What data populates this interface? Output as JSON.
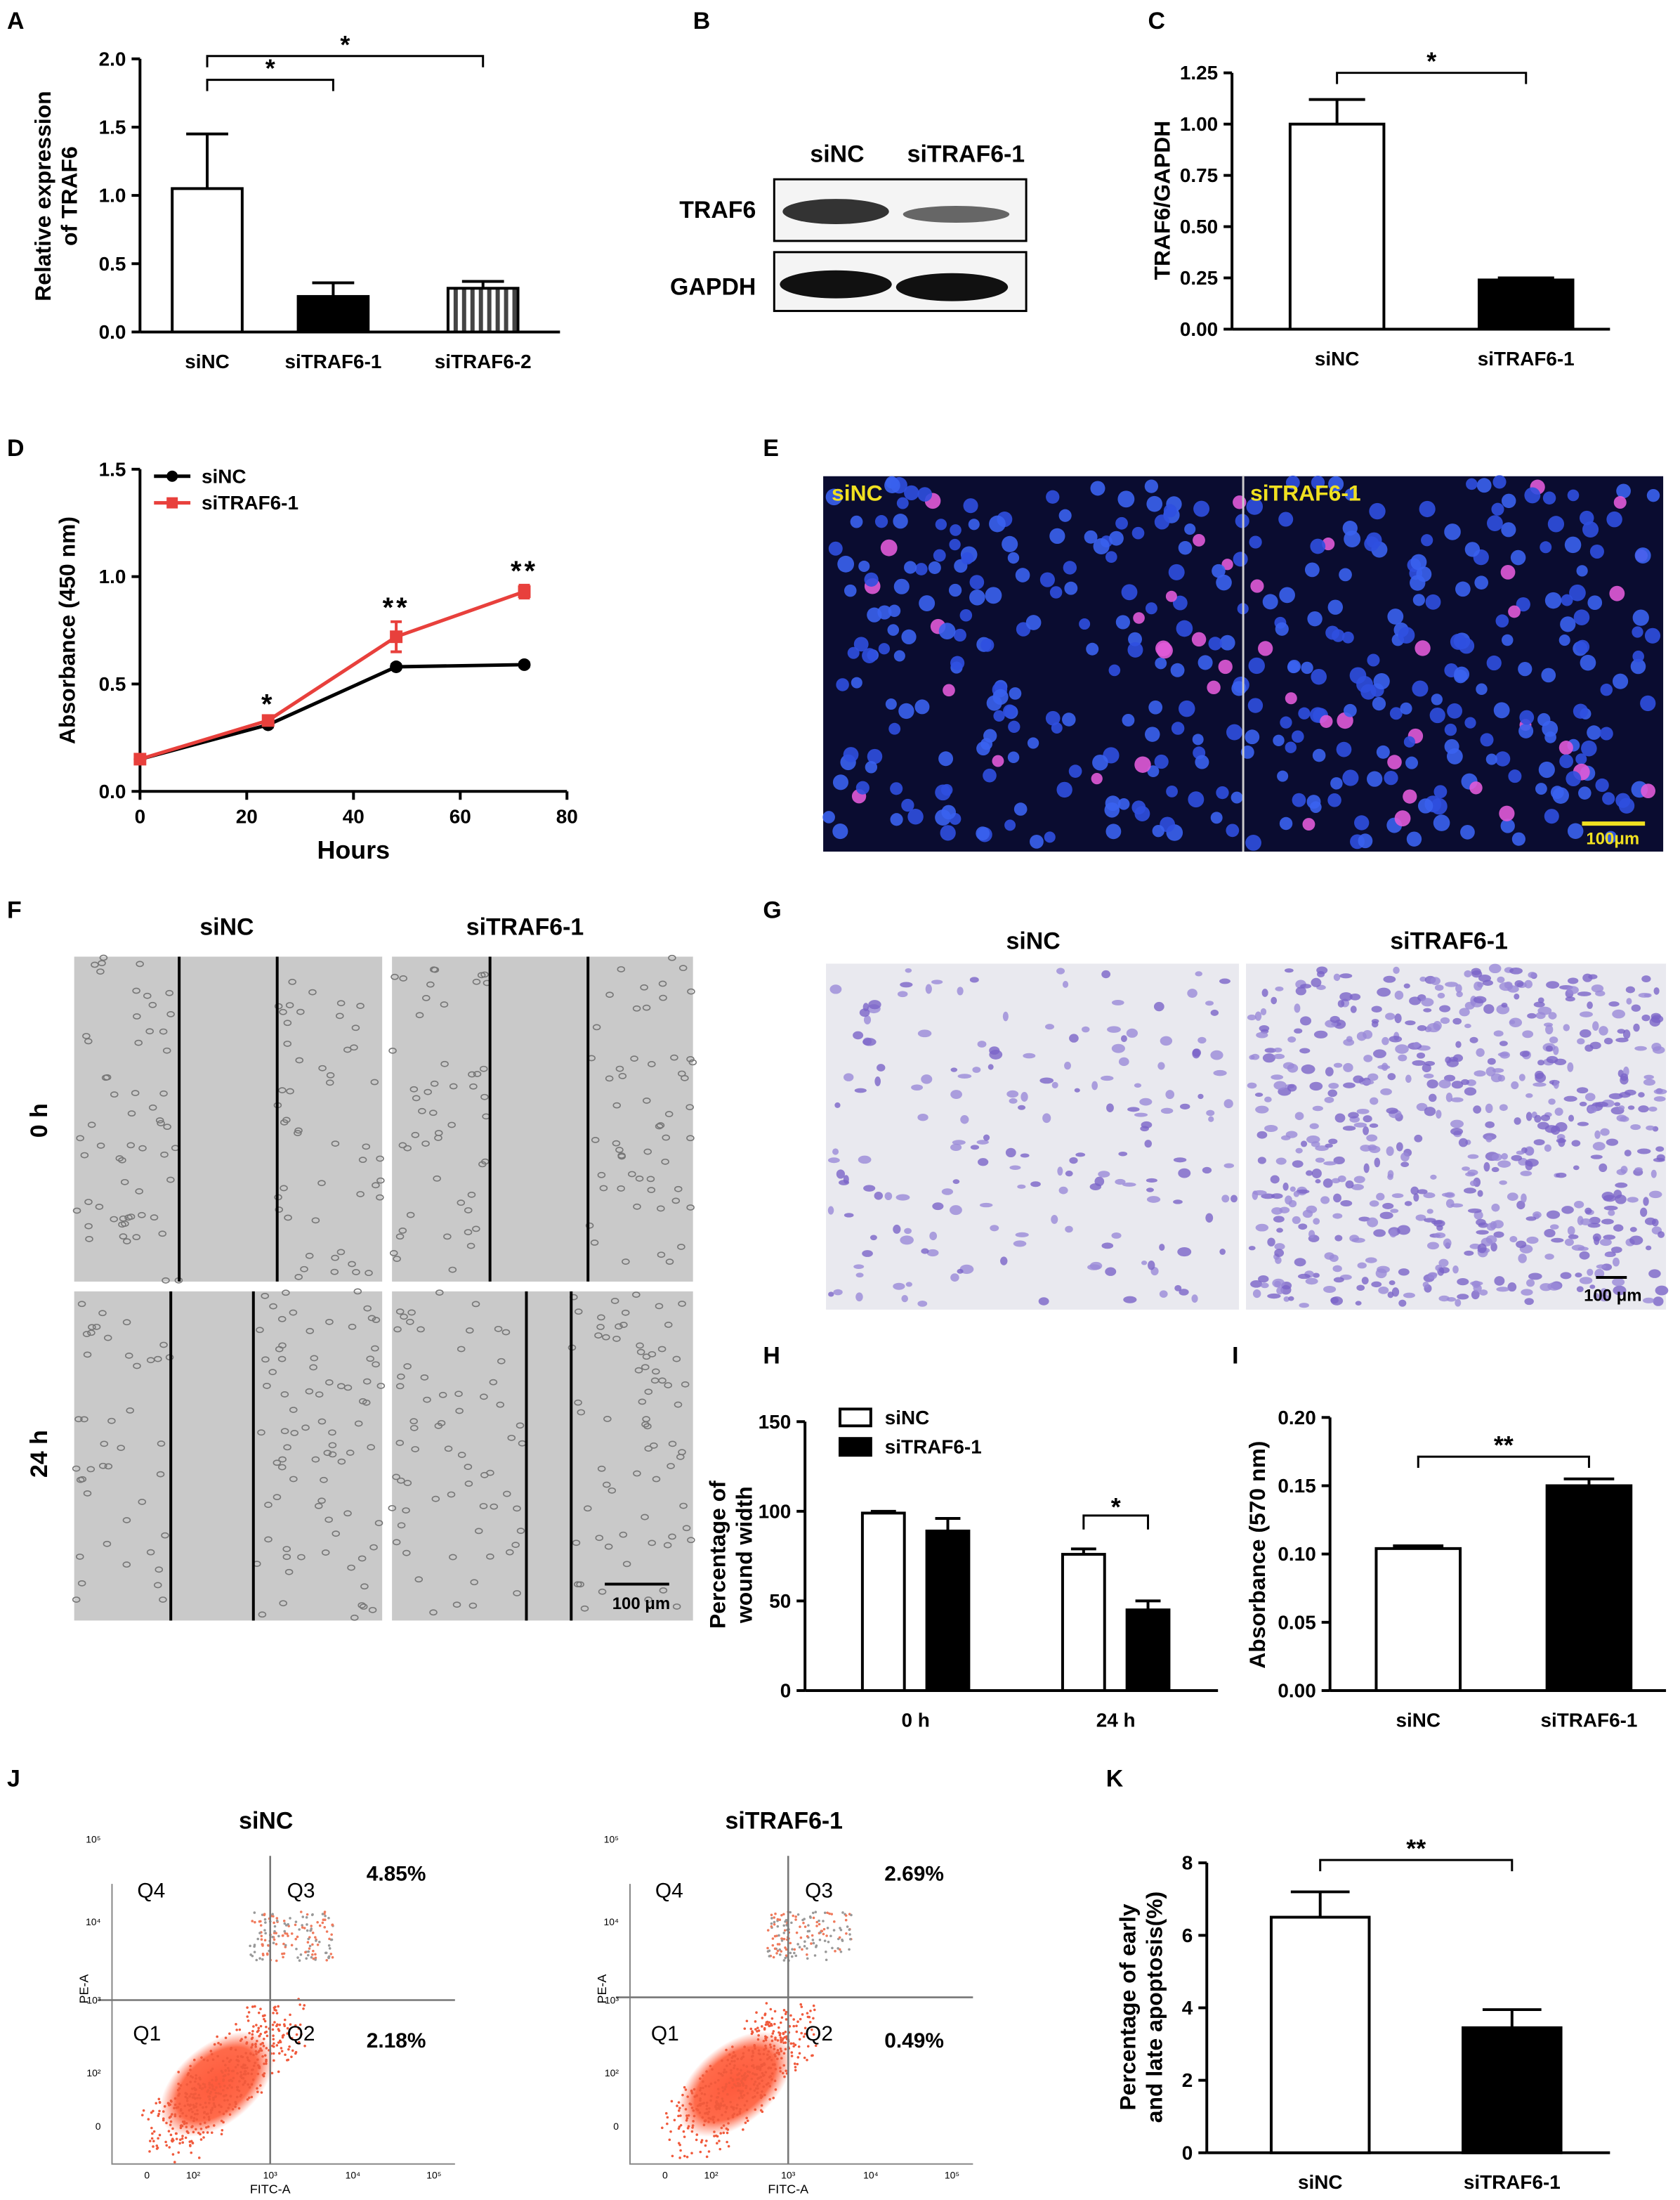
{
  "chart_data": [
    {
      "panel": "A",
      "type": "bar",
      "y_label": [
        "Relative expression",
        "of TRAF6"
      ],
      "categories": [
        "siNC",
        "siTRAF6-1",
        "siTRAF6-2"
      ],
      "values": [
        1.05,
        0.26,
        0.32
      ],
      "errors": [
        0.4,
        0.1,
        0.05
      ],
      "fills": [
        "white",
        "black",
        "striped"
      ],
      "ylim": [
        0,
        2
      ],
      "yticks": [
        {
          "value": 0,
          "label": "0.0"
        },
        0.5,
        {
          "value": 1,
          "label": "1.0"
        },
        1.5,
        {
          "value": 2,
          "label": "2.0"
        }
      ],
      "annotations": [
        {
          "text": "*",
          "from": 0,
          "to": 1
        },
        {
          "text": "*",
          "from": 0,
          "to": 2
        }
      ]
    },
    {
      "panel": "C",
      "type": "bar",
      "y_label": [
        "TRAF6/GAPDH"
      ],
      "categories": [
        "siNC",
        "siTRAF6-1"
      ],
      "values": [
        1.0,
        0.24
      ],
      "errors": [
        0.12,
        0.01
      ],
      "fills": [
        "white",
        "black"
      ],
      "ylim": [
        0,
        1.25
      ],
      "yticks": [
        {
          "value": 0,
          "label": "0.00"
        },
        0.25,
        {
          "value": 0.5,
          "label": "0.50"
        },
        0.75,
        {
          "value": 1,
          "label": "1.00"
        },
        1.25
      ],
      "annotations": [
        {
          "text": "*",
          "from": 0,
          "to": 1
        }
      ]
    },
    {
      "panel": "D",
      "type": "line",
      "x_label": "Hours",
      "y_label": [
        "Absorbance (450 nm)"
      ],
      "x": [
        0,
        24,
        48,
        72
      ],
      "series": [
        {
          "name": "siNC",
          "color": "#000000",
          "marker": "circle",
          "values": [
            0.15,
            0.31,
            0.58,
            0.59
          ],
          "errors": [
            0.01,
            0.01,
            0.01,
            0.01
          ]
        },
        {
          "name": "siTRAF6-1",
          "color": "#e8403c",
          "marker": "square",
          "values": [
            0.15,
            0.33,
            0.72,
            0.93
          ],
          "errors": [
            0.01,
            0.01,
            0.07,
            0.03
          ]
        }
      ],
      "xlim": [
        0,
        80
      ],
      "xticks": [
        0,
        20,
        40,
        60,
        80
      ],
      "ylim": [
        0,
        1.5
      ],
      "yticks": [
        {
          "value": 0,
          "label": "0.0"
        },
        0.5,
        {
          "value": 1,
          "label": "1.0"
        },
        1.5
      ],
      "legend": "upper left",
      "annotations": [
        {
          "text": "*",
          "x": 24
        },
        {
          "text": "**",
          "x": 48
        },
        {
          "text": "**",
          "x": 72
        }
      ]
    },
    {
      "panel": "H",
      "type": "bar",
      "y_label": [
        "Percentage of",
        "wound width"
      ],
      "categories": [
        "0 h",
        "24 h"
      ],
      "series": [
        {
          "name": "siNC",
          "color": "#ffffff",
          "values": [
            99,
            76
          ],
          "errors": [
            1,
            3
          ]
        },
        {
          "name": "siTRAF6-1",
          "color": "#000000",
          "values": [
            89,
            45
          ],
          "errors": [
            7,
            5
          ]
        }
      ],
      "ylim": [
        0,
        150
      ],
      "yticks": [
        0,
        50,
        100,
        150
      ],
      "legend": "upper left",
      "annotations": [
        {
          "text": "*",
          "category": 1
        }
      ]
    },
    {
      "panel": "I",
      "type": "bar",
      "y_label": [
        "Absorbance (570 nm)"
      ],
      "categories": [
        "siNC",
        "siTRAF6-1"
      ],
      "values": [
        0.104,
        0.15
      ],
      "errors": [
        0.002,
        0.005
      ],
      "fills": [
        "white",
        "black"
      ],
      "ylim": [
        0,
        0.2
      ],
      "yticks": [
        {
          "value": 0,
          "label": "0.00"
        },
        0.05,
        {
          "value": 0.1,
          "label": "0.10"
        },
        0.15,
        {
          "value": 0.2,
          "label": "0.20"
        }
      ],
      "annotations": [
        {
          "text": "**",
          "from": 0,
          "to": 1
        }
      ]
    },
    {
      "panel": "K",
      "type": "bar",
      "y_label": [
        "Percentage of early",
        "and late apoptosis(%)"
      ],
      "categories": [
        "siNC",
        "siTRAF6-1"
      ],
      "values": [
        6.5,
        3.45
      ],
      "errors": [
        0.7,
        0.5
      ],
      "fills": [
        "white",
        "black"
      ],
      "ylim": [
        0,
        8
      ],
      "yticks": [
        0,
        2,
        4,
        6,
        8
      ],
      "annotations": [
        {
          "text": "**",
          "from": 0,
          "to": 1
        }
      ]
    }
  ],
  "panels": {
    "B": {
      "label": "B",
      "lanes": [
        "siNC",
        "siTRAF6-1"
      ],
      "rows": [
        "TRAF6",
        "GAPDH"
      ]
    },
    "E": {
      "label": "E",
      "images": [
        "siNC",
        "siTRAF6-1"
      ],
      "scale_bar": "100μm"
    },
    "F": {
      "label": "F",
      "columns": [
        "siNC",
        "siTRAF6-1"
      ],
      "rows": [
        "0 h",
        "24 h"
      ],
      "scale_bar": "100 μm"
    },
    "G": {
      "label": "G",
      "columns": [
        "siNC",
        "siTRAF6-1"
      ],
      "scale_bar": "100 μm"
    },
    "J": {
      "label": "J",
      "plots": [
        {
          "title": "siNC",
          "Q3": "4.85%",
          "Q2": "2.18%"
        },
        {
          "title": "siTRAF6-1",
          "Q3": "2.69%",
          "Q2": "0.49%"
        }
      ],
      "quadrants": [
        "Q1",
        "Q2",
        "Q3",
        "Q4"
      ],
      "x_axis_label": "FITC-A",
      "y_axis_label": "PE-A",
      "tick_labels": [
        "0",
        "10²",
        "10³",
        "10⁴",
        "10⁵"
      ]
    }
  }
}
